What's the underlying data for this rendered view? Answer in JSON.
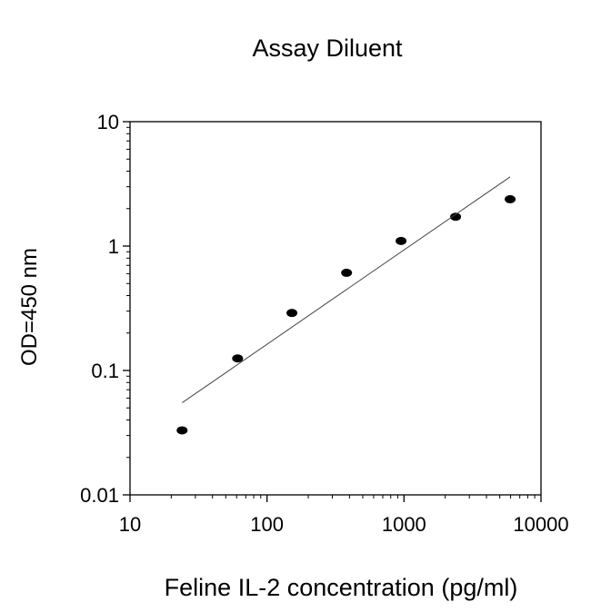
{
  "chart_data": {
    "type": "scatter",
    "title": "Assay Diluent",
    "xlabel": "Feline IL-2 concentration (pg/ml)",
    "ylabel": "OD=450 nm",
    "xscale": "log",
    "yscale": "log",
    "xlim": [
      10,
      10000
    ],
    "ylim": [
      0.01,
      10
    ],
    "xticks": [
      10,
      100,
      1000,
      10000
    ],
    "xtick_labels": [
      "10",
      "100",
      "1000",
      "10000"
    ],
    "yticks": [
      0.01,
      0.1,
      1,
      10
    ],
    "ytick_labels": [
      "0.01",
      "0.1",
      "1",
      "10"
    ],
    "grid": false,
    "series": [
      {
        "type": "scatter",
        "x": [
          24,
          61,
          152,
          381,
          952,
          2381,
          5952
        ],
        "y": [
          0.033,
          0.125,
          0.29,
          0.61,
          1.1,
          1.72,
          2.38
        ]
      },
      {
        "type": "line",
        "x": [
          24,
          5952
        ],
        "y": [
          0.055,
          3.6
        ]
      }
    ]
  }
}
